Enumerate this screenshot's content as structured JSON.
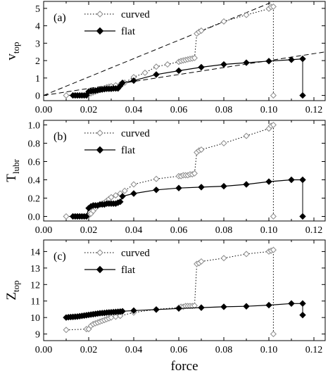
{
  "chart_data": [
    {
      "type": "line",
      "panel_label": "(a)",
      "ylabel_main": "v",
      "ylabel_sub": "top",
      "xlim": [
        0.0,
        0.125
      ],
      "ylim": [
        -0.3,
        5.4
      ],
      "xticks": [
        0.0,
        0.02,
        0.04,
        0.06,
        0.08,
        0.1,
        0.12
      ],
      "xtick_labels": [
        "0.00",
        "0.02",
        "0.04",
        "0.06",
        "0.08",
        "0.10",
        "0.12"
      ],
      "yticks": [
        0,
        1,
        2,
        3,
        4,
        5
      ],
      "ytick_labels": [
        "0",
        "1",
        "2",
        "3",
        "4",
        "5"
      ],
      "legend_placement": "top-left",
      "series": [
        {
          "name": "curved",
          "marker": "open-diamond",
          "line": "dotted",
          "x": [
            0.01,
            0.019,
            0.02,
            0.021,
            0.022,
            0.023,
            0.024,
            0.025,
            0.026,
            0.027,
            0.028,
            0.029,
            0.03,
            0.032,
            0.034,
            0.036,
            0.04,
            0.045,
            0.05,
            0.055,
            0.06,
            0.061,
            0.062,
            0.063,
            0.064,
            0.065,
            0.066,
            0.067,
            0.068,
            0.069,
            0.07,
            0.08,
            0.09,
            0.1,
            0.101,
            0.102,
            0.102
          ],
          "y": [
            0.0,
            0.05,
            0.08,
            0.12,
            0.17,
            0.22,
            0.27,
            0.32,
            0.37,
            0.42,
            0.47,
            0.5,
            0.53,
            0.58,
            0.63,
            0.73,
            1.05,
            1.3,
            1.65,
            1.78,
            1.93,
            1.98,
            2.01,
            2.04,
            2.07,
            2.1,
            2.12,
            2.15,
            3.55,
            3.65,
            3.72,
            4.25,
            4.62,
            4.98,
            5.08,
            5.1,
            0.0
          ]
        },
        {
          "name": "flat",
          "marker": "filled-diamond",
          "line": "solid",
          "x": [
            0.013,
            0.014,
            0.015,
            0.016,
            0.017,
            0.018,
            0.019,
            0.02,
            0.021,
            0.022,
            0.023,
            0.024,
            0.025,
            0.026,
            0.027,
            0.028,
            0.029,
            0.03,
            0.031,
            0.032,
            0.033,
            0.034,
            0.035,
            0.04,
            0.05,
            0.06,
            0.07,
            0.08,
            0.09,
            0.1,
            0.11,
            0.115,
            0.115
          ],
          "y": [
            0.0,
            0.0,
            0.0,
            0.0,
            0.0,
            0.0,
            0.0,
            0.22,
            0.24,
            0.26,
            0.28,
            0.3,
            0.32,
            0.34,
            0.36,
            0.38,
            0.38,
            0.38,
            0.4,
            0.4,
            0.4,
            0.55,
            0.72,
            0.85,
            1.2,
            1.42,
            1.62,
            1.78,
            1.88,
            1.97,
            2.05,
            2.1,
            0.0
          ]
        }
      ],
      "reference_lines": [
        {
          "style": "dashed",
          "x": [
            0.0,
            0.105
          ],
          "y": [
            0.0,
            5.55
          ]
        },
        {
          "style": "dashed",
          "x": [
            0.0,
            0.125
          ],
          "y": [
            0.0,
            2.5
          ]
        },
        {
          "style": "dotted",
          "x": [
            0.102,
            0.102
          ],
          "y": [
            0.0,
            5.1
          ]
        },
        {
          "style": "solid",
          "x": [
            0.115,
            0.115
          ],
          "y": [
            0.0,
            2.1
          ]
        }
      ]
    },
    {
      "type": "line",
      "panel_label": "(b)",
      "ylabel_main": "T",
      "ylabel_sub": "lubr",
      "xlim": [
        0.0,
        0.125
      ],
      "ylim": [
        -0.05,
        1.05
      ],
      "xticks": [
        0.0,
        0.02,
        0.04,
        0.06,
        0.08,
        0.1,
        0.12
      ],
      "xtick_labels": [
        "0.00",
        "0.02",
        "0.04",
        "0.06",
        "0.08",
        "0.10",
        "0.12"
      ],
      "yticks": [
        0.0,
        0.2,
        0.4,
        0.6,
        0.8,
        1.0
      ],
      "ytick_labels": [
        "0.0",
        "0.2",
        "0.4",
        "0.6",
        "0.8",
        "1.0"
      ],
      "legend_placement": "top-left",
      "series": [
        {
          "name": "curved",
          "marker": "open-diamond",
          "line": "dotted",
          "x": [
            0.01,
            0.019,
            0.02,
            0.021,
            0.022,
            0.023,
            0.024,
            0.025,
            0.026,
            0.027,
            0.028,
            0.029,
            0.03,
            0.032,
            0.034,
            0.036,
            0.04,
            0.05,
            0.06,
            0.061,
            0.062,
            0.063,
            0.064,
            0.065,
            0.066,
            0.067,
            0.068,
            0.069,
            0.07,
            0.08,
            0.09,
            0.1,
            0.101,
            0.102,
            0.102
          ],
          "y": [
            0.0,
            0.0,
            0.01,
            0.03,
            0.06,
            0.09,
            0.12,
            0.13,
            0.14,
            0.15,
            0.17,
            0.19,
            0.21,
            0.23,
            0.25,
            0.28,
            0.35,
            0.41,
            0.44,
            0.44,
            0.45,
            0.45,
            0.45,
            0.46,
            0.46,
            0.47,
            0.7,
            0.72,
            0.73,
            0.8,
            0.88,
            0.96,
            0.99,
            1.0,
            0.0
          ]
        },
        {
          "name": "flat",
          "marker": "filled-diamond",
          "line": "solid",
          "x": [
            0.013,
            0.014,
            0.015,
            0.016,
            0.017,
            0.018,
            0.019,
            0.02,
            0.021,
            0.022,
            0.023,
            0.024,
            0.025,
            0.026,
            0.027,
            0.028,
            0.029,
            0.03,
            0.031,
            0.032,
            0.033,
            0.034,
            0.035,
            0.04,
            0.05,
            0.06,
            0.07,
            0.08,
            0.09,
            0.1,
            0.11,
            0.115,
            0.115
          ],
          "y": [
            0.0,
            0.0,
            0.0,
            0.0,
            0.0,
            0.0,
            0.0,
            0.09,
            0.11,
            0.12,
            0.12,
            0.12,
            0.13,
            0.13,
            0.13,
            0.14,
            0.14,
            0.14,
            0.14,
            0.14,
            0.15,
            0.16,
            0.22,
            0.25,
            0.29,
            0.31,
            0.32,
            0.33,
            0.35,
            0.38,
            0.4,
            0.4,
            0.0
          ]
        }
      ],
      "reference_lines": [
        {
          "style": "dotted",
          "x": [
            0.102,
            0.102
          ],
          "y": [
            0.0,
            1.0
          ]
        },
        {
          "style": "solid",
          "x": [
            0.115,
            0.115
          ],
          "y": [
            0.0,
            0.4
          ]
        }
      ]
    },
    {
      "type": "line",
      "panel_label": "(c)",
      "ylabel_main": "Z",
      "ylabel_sub": "top",
      "xlabel": "force",
      "xlim": [
        0.0,
        0.125
      ],
      "ylim": [
        8.6,
        14.7
      ],
      "xticks": [
        0.0,
        0.02,
        0.04,
        0.06,
        0.08,
        0.1,
        0.12
      ],
      "xtick_labels": [
        "0.00",
        "0.02",
        "0.04",
        "0.06",
        "0.08",
        "0.10",
        "0.12"
      ],
      "yticks": [
        9,
        10,
        11,
        12,
        13,
        14
      ],
      "ytick_labels": [
        "9",
        "10",
        "11",
        "12",
        "13",
        "14"
      ],
      "legend_placement": "top-left",
      "series": [
        {
          "name": "curved",
          "marker": "open-diamond",
          "line": "dotted",
          "x": [
            0.01,
            0.019,
            0.02,
            0.021,
            0.022,
            0.023,
            0.024,
            0.025,
            0.026,
            0.027,
            0.028,
            0.029,
            0.03,
            0.032,
            0.034,
            0.04,
            0.05,
            0.06,
            0.061,
            0.062,
            0.063,
            0.064,
            0.065,
            0.066,
            0.067,
            0.068,
            0.069,
            0.07,
            0.08,
            0.09,
            0.1,
            0.101,
            0.102,
            0.102
          ],
          "y": [
            9.25,
            9.3,
            9.3,
            9.5,
            9.6,
            9.65,
            9.7,
            9.75,
            9.8,
            9.85,
            9.9,
            9.95,
            10.0,
            10.05,
            10.1,
            10.3,
            10.5,
            10.6,
            10.65,
            10.65,
            10.7,
            10.7,
            10.7,
            10.7,
            10.72,
            13.25,
            13.3,
            13.4,
            13.6,
            13.85,
            14.0,
            14.05,
            14.1,
            9.0
          ]
        },
        {
          "name": "flat",
          "marker": "filled-diamond",
          "line": "solid",
          "x": [
            0.01,
            0.011,
            0.012,
            0.013,
            0.014,
            0.015,
            0.016,
            0.017,
            0.018,
            0.019,
            0.02,
            0.021,
            0.022,
            0.023,
            0.024,
            0.025,
            0.026,
            0.027,
            0.028,
            0.029,
            0.03,
            0.031,
            0.032,
            0.033,
            0.034,
            0.035,
            0.04,
            0.05,
            0.06,
            0.07,
            0.08,
            0.09,
            0.1,
            0.11,
            0.115,
            0.115
          ],
          "y": [
            10.0,
            10.02,
            10.03,
            10.04,
            10.05,
            10.06,
            10.08,
            10.1,
            10.12,
            10.14,
            10.16,
            10.18,
            10.2,
            10.22,
            10.24,
            10.26,
            10.27,
            10.28,
            10.3,
            10.31,
            10.32,
            10.33,
            10.34,
            10.35,
            10.36,
            10.38,
            10.42,
            10.48,
            10.55,
            10.6,
            10.65,
            10.68,
            10.75,
            10.85,
            10.85,
            10.15
          ]
        }
      ],
      "reference_lines": [
        {
          "style": "dotted",
          "x": [
            0.102,
            0.102
          ],
          "y": [
            9.0,
            14.1
          ]
        },
        {
          "style": "solid",
          "x": [
            0.115,
            0.115
          ],
          "y": [
            10.15,
            10.85
          ]
        }
      ]
    }
  ]
}
